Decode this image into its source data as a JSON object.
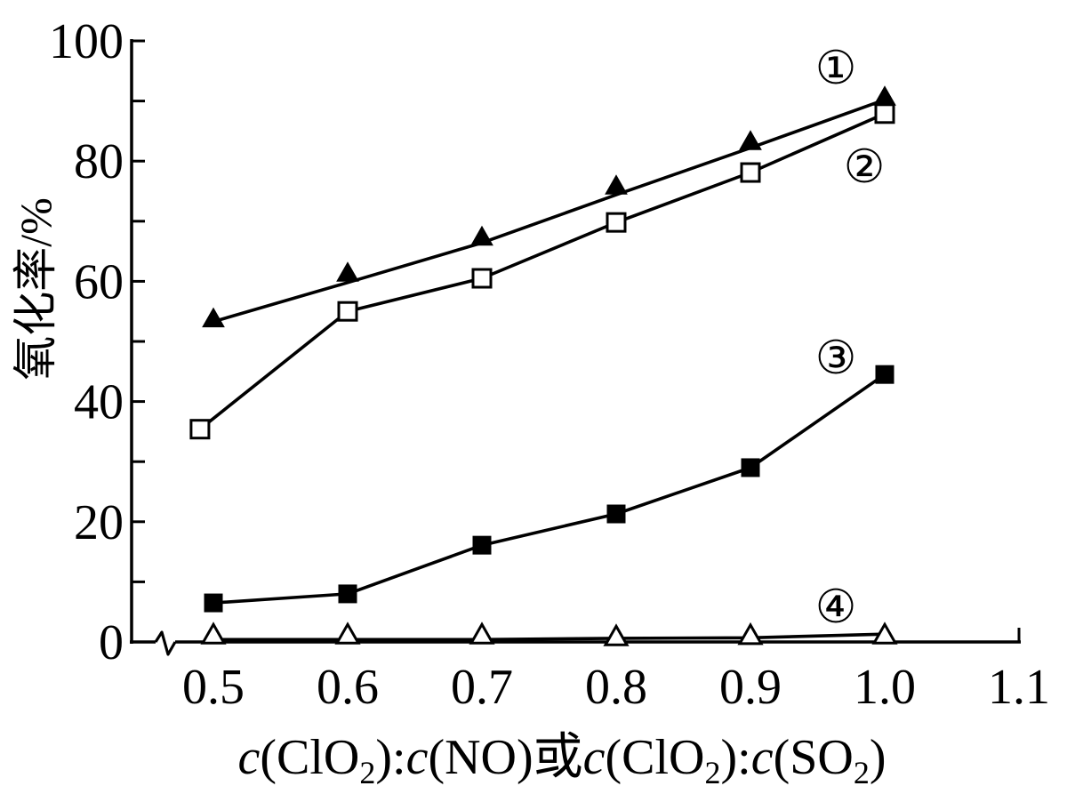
{
  "chart_data": {
    "type": "line",
    "ylabel": "氧化率/%",
    "xlabel_parts": [
      {
        "text": "c",
        "style": "italic"
      },
      {
        "text": "(ClO"
      },
      {
        "text": "2",
        "style": "sub"
      },
      {
        "text": "):"
      },
      {
        "text": "c",
        "style": "italic"
      },
      {
        "text": "(NO)或"
      },
      {
        "text": "c",
        "style": "italic"
      },
      {
        "text": "(ClO"
      },
      {
        "text": "2",
        "style": "sub"
      },
      {
        "text": "):"
      },
      {
        "text": "c",
        "style": "italic"
      },
      {
        "text": "(SO"
      },
      {
        "text": "2",
        "style": "sub"
      },
      {
        "text": ")"
      }
    ],
    "ylim": [
      0,
      100
    ],
    "y_ticks": [
      0,
      20,
      40,
      60,
      80,
      100
    ],
    "y_tick_labels": [
      "0",
      "20",
      "40",
      "60",
      "80",
      "100"
    ],
    "y_minor_ticks": [
      10,
      30,
      50,
      70,
      90
    ],
    "x_ticks": [
      0.5,
      0.6,
      0.7,
      0.8,
      0.9,
      1.0,
      1.1
    ],
    "x_tick_labels": [
      "0.5",
      "0.6",
      "0.7",
      "0.8",
      "0.9",
      "1.0",
      "1.1"
    ],
    "x_axis_break": true,
    "grid": false,
    "legend": "none",
    "series": [
      {
        "name": "①",
        "marker": "filled-triangle",
        "x": [
          0.5,
          0.6,
          0.7,
          0.8,
          0.9,
          1.0
        ],
        "values": [
          53.6,
          61.2,
          67.2,
          75.7,
          83.1,
          90.5
        ],
        "line_values": [
          53.3,
          59.8,
          66.4,
          74.4,
          82.2,
          90.2
        ]
      },
      {
        "name": "②",
        "marker": "open-square",
        "x": [
          0.49,
          0.6,
          0.7,
          0.8,
          0.9,
          1.0
        ],
        "values": [
          35.4,
          55.0,
          60.5,
          69.8,
          78.1,
          87.9
        ]
      },
      {
        "name": "③",
        "marker": "filled-square",
        "x": [
          0.5,
          0.6,
          0.7,
          0.8,
          0.9,
          1.0
        ],
        "values": [
          6.5,
          8.0,
          16.1,
          21.3,
          29.0,
          44.5
        ]
      },
      {
        "name": "④",
        "marker": "open-triangle",
        "x": [
          0.5,
          0.6,
          0.7,
          0.8,
          0.9,
          1.0
        ],
        "values": [
          1.0,
          1.0,
          1.0,
          0.7,
          0.9,
          1.0
        ],
        "line_values": [
          0.4,
          0.4,
          0.4,
          0.6,
          0.7,
          1.3
        ]
      }
    ]
  },
  "colors": {
    "foreground": "#000000",
    "background": "#ffffff"
  }
}
